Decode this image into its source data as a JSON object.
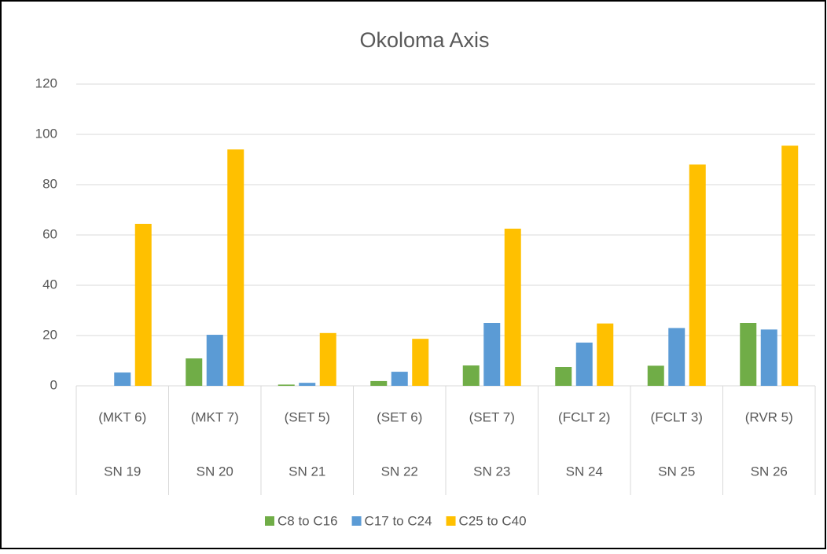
{
  "chart_data": {
    "type": "bar",
    "title": "Okoloma Axis",
    "categories": [
      "(MKT 6)",
      "(MKT 7)",
      "(SET 5)",
      "(SET 6)",
      "(SET 7)",
      "(FCLT 2)",
      "(FCLT 3)",
      "(RVR 5)"
    ],
    "category_groups": [
      "SN 19",
      "SN 20",
      "SN 21",
      "SN 22",
      "SN 23",
      "SN 24",
      "SN 25",
      "SN 26"
    ],
    "series": [
      {
        "name": "C8 to C16",
        "color": "#70ad47",
        "values": [
          0,
          10.9,
          0.5,
          1.9,
          8.1,
          7.5,
          8,
          25
        ]
      },
      {
        "name": "C17 to C24",
        "color": "#5b9bd5",
        "values": [
          5.3,
          20.3,
          1.2,
          5.6,
          25,
          17.2,
          23,
          22.4
        ]
      },
      {
        "name": "C25 to C40",
        "color": "#ffc000",
        "values": [
          64.4,
          94,
          21,
          18.7,
          62.5,
          24.8,
          88,
          95.5
        ]
      }
    ],
    "ylim": [
      0,
      120
    ],
    "yticks": [
      0,
      20,
      40,
      60,
      80,
      100,
      120
    ],
    "grid": true,
    "legend": "bottom"
  }
}
